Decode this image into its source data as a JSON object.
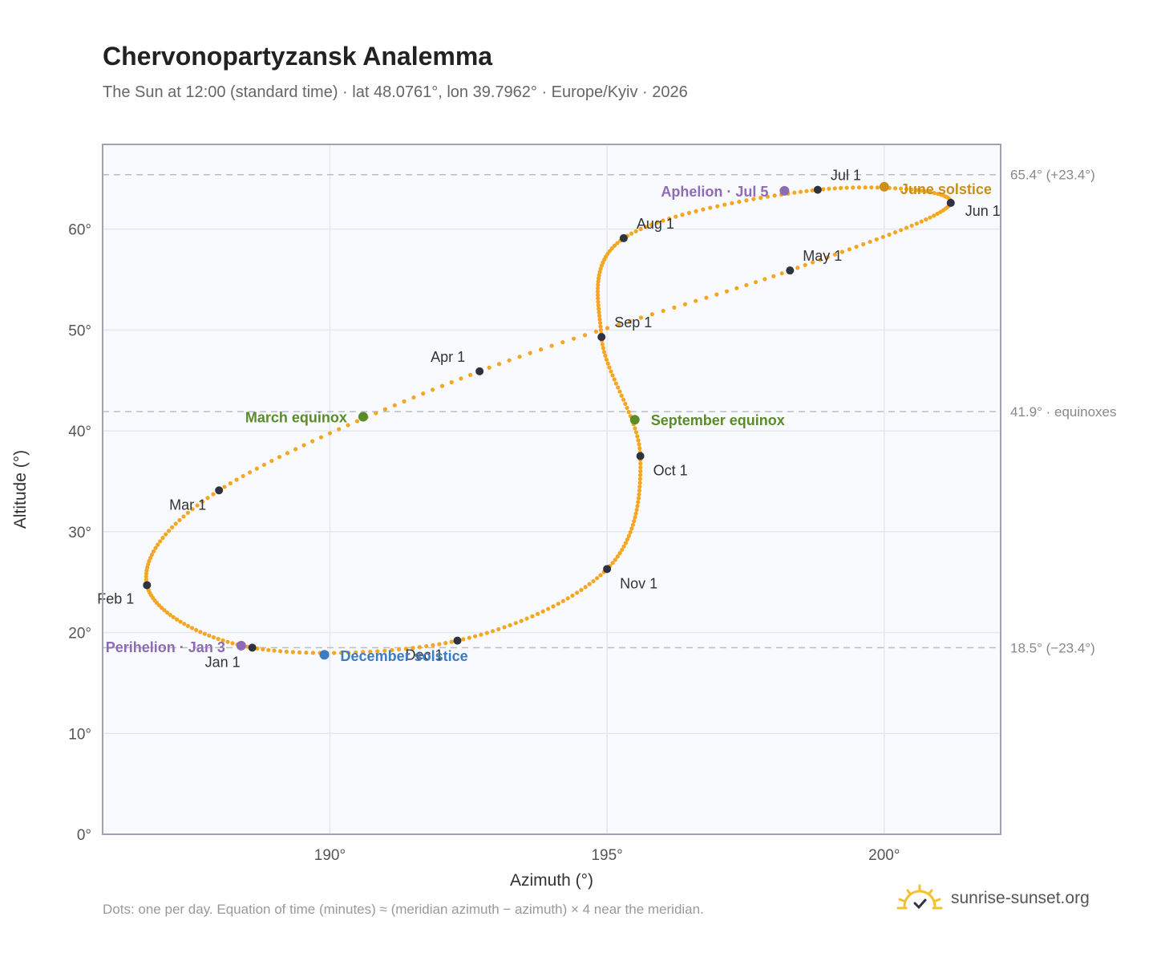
{
  "header": {
    "title": "Chervonopartyzansk Analemma",
    "subtitle": "The Sun at 12:00 (standard time) · lat 48.0761°, lon 39.7962° · Europe/Kyiv · 2026"
  },
  "footer": {
    "note": "Dots: one per day. Equation of time (minutes) ≈ (meridian azimuth − azimuth) × 4 near the meridian.",
    "brand": "sunrise-sunset.org"
  },
  "colors": {
    "curve": "#f5a623",
    "month_dot": "#2d3440",
    "equinox": "#5b8c2a",
    "june_solstice": "#c8901a",
    "december_solstice": "#3b7cc4",
    "apsis": "#8e6bb5",
    "plot_bg": "#f8fafd",
    "grid": "#e3e8ef",
    "frame": "#9aa4b2",
    "ref_line": "#b8bec8"
  },
  "chart_data": {
    "type": "scatter",
    "xlabel": "Azimuth (°)",
    "ylabel": "Altitude (°)",
    "xlim": [
      185.9,
      202.1
    ],
    "ylim": [
      0,
      68.4
    ],
    "xticks": [
      190,
      195,
      200
    ],
    "xtick_labels": [
      "190°",
      "195°",
      "200°"
    ],
    "yticks": [
      0,
      10,
      20,
      30,
      40,
      50,
      60
    ],
    "ytick_labels": [
      "0°",
      "10°",
      "20°",
      "30°",
      "40°",
      "50°",
      "60°"
    ],
    "grid": true,
    "reference_lines": [
      {
        "y": 65.4,
        "label": "65.4° (+23.4°)"
      },
      {
        "y": 41.9,
        "label": "41.9° · equinoxes"
      },
      {
        "y": 18.5,
        "label": "18.5° (−23.4°)"
      }
    ],
    "months": [
      {
        "label": "Jan 1",
        "az": 188.6,
        "alt": 18.5
      },
      {
        "label": "Feb 1",
        "az": 186.7,
        "alt": 24.7
      },
      {
        "label": "Mar 1",
        "az": 188.0,
        "alt": 34.1
      },
      {
        "label": "Apr 1",
        "az": 192.7,
        "alt": 45.9
      },
      {
        "label": "May 1",
        "az": 198.3,
        "alt": 55.9
      },
      {
        "label": "Jun 1",
        "az": 201.2,
        "alt": 62.6
      },
      {
        "label": "Jul 1",
        "az": 198.8,
        "alt": 63.9
      },
      {
        "label": "Aug 1",
        "az": 195.3,
        "alt": 59.1
      },
      {
        "label": "Sep 1",
        "az": 194.9,
        "alt": 49.3
      },
      {
        "label": "Oct 1",
        "az": 195.6,
        "alt": 37.5
      },
      {
        "label": "Nov 1",
        "az": 195.0,
        "alt": 26.3
      },
      {
        "label": "Dec 1",
        "az": 192.3,
        "alt": 19.2
      }
    ],
    "events": [
      {
        "label": "March equinox",
        "az": 190.6,
        "alt": 41.4,
        "kind": "equinox"
      },
      {
        "label": "September equinox",
        "az": 195.5,
        "alt": 41.1,
        "kind": "equinox"
      },
      {
        "label": "June solstice",
        "az": 200.0,
        "alt": 64.2,
        "kind": "june_solstice"
      },
      {
        "label": "December solstice",
        "az": 189.9,
        "alt": 17.8,
        "kind": "december_solstice"
      },
      {
        "label": "Perihelion · Jan 3",
        "az": 188.4,
        "alt": 18.7,
        "kind": "apsis"
      },
      {
        "label": "Aphelion · Jul 5",
        "az": 198.2,
        "alt": 63.8,
        "kind": "apsis"
      }
    ]
  }
}
